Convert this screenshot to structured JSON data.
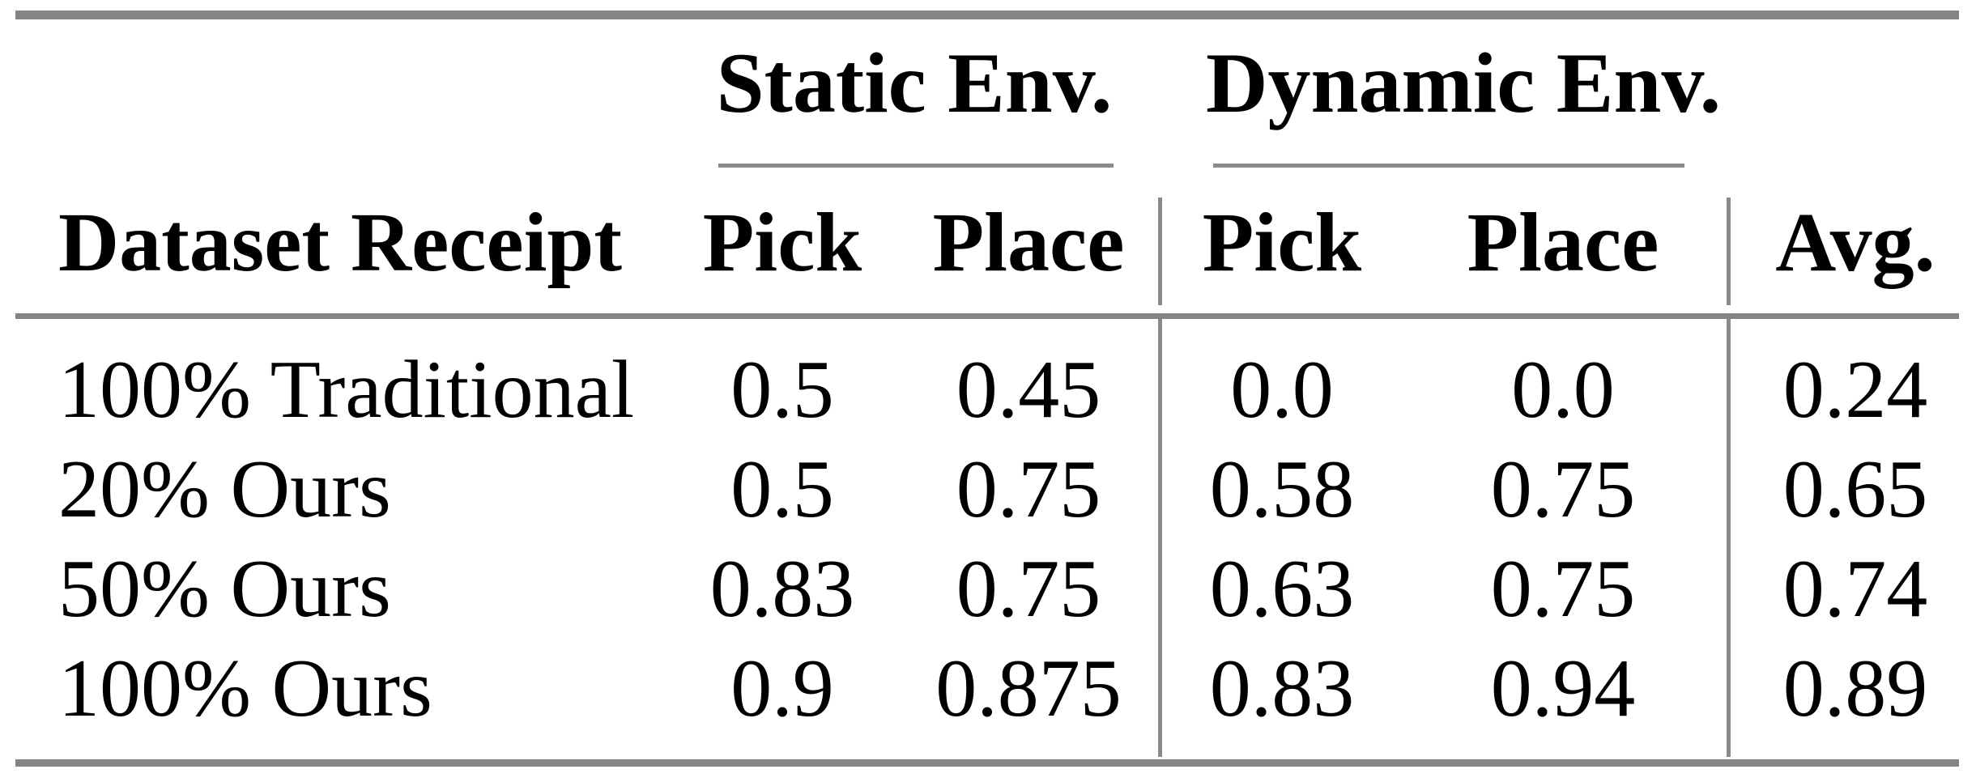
{
  "page": {
    "background": "#ffffff",
    "text_color": "#000000",
    "rule_color": "#848484"
  },
  "table": {
    "row_header": "Dataset Receipt",
    "groups": [
      {
        "label": "Static Env.",
        "columns": [
          "Pick",
          "Place"
        ]
      },
      {
        "label": "Dynamic Env.",
        "columns": [
          "Pick",
          "Place"
        ]
      }
    ],
    "avg_header": "Avg.",
    "rows": [
      {
        "label": "100% Traditional",
        "values": [
          "0.5",
          "0.45",
          "0.0",
          "0.0",
          "0.24"
        ]
      },
      {
        "label": "20% Ours",
        "values": [
          "0.5",
          "0.75",
          "0.58",
          "0.75",
          "0.65"
        ]
      },
      {
        "label": "50% Ours",
        "values": [
          "0.83",
          "0.75",
          "0.63",
          "0.75",
          "0.74"
        ]
      },
      {
        "label": "100% Ours",
        "values": [
          "0.9",
          "0.875",
          "0.83",
          "0.94",
          "0.89"
        ]
      }
    ]
  },
  "chart_data": {
    "type": "table",
    "title": "",
    "columns": [
      "Dataset Receipt",
      "Static Env. Pick",
      "Static Env. Place",
      "Dynamic Env. Pick",
      "Dynamic Env. Place",
      "Avg."
    ],
    "rows": [
      [
        "100% Traditional",
        0.5,
        0.45,
        0.0,
        0.0,
        0.24
      ],
      [
        "20% Ours",
        0.5,
        0.75,
        0.58,
        0.75,
        0.65
      ],
      [
        "50% Ours",
        0.83,
        0.75,
        0.63,
        0.75,
        0.74
      ],
      [
        "100% Ours",
        0.9,
        0.875,
        0.83,
        0.94,
        0.89
      ]
    ]
  }
}
